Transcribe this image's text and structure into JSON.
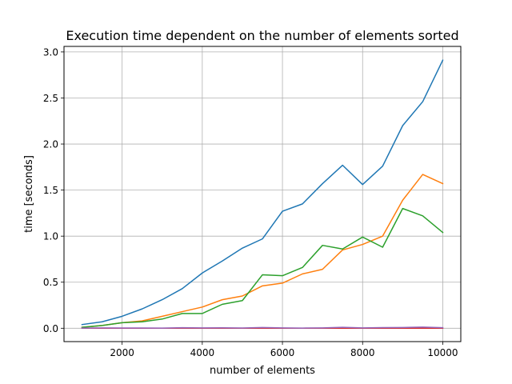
{
  "chart_data": {
    "type": "line",
    "title": "Execution time dependent on the number of elements sorted",
    "xlabel": "number of elements",
    "ylabel": "time [seconds]",
    "xlim": [
      550,
      10450
    ],
    "ylim": [
      -0.145,
      3.06
    ],
    "xticks": [
      2000,
      4000,
      6000,
      8000,
      10000
    ],
    "xtick_labels": [
      "2000",
      "4000",
      "6000",
      "8000",
      "10000"
    ],
    "yticks": [
      0.0,
      0.5,
      1.0,
      1.5,
      2.0,
      2.5,
      3.0
    ],
    "ytick_labels": [
      "0.0",
      "0.5",
      "1.0",
      "1.5",
      "2.0",
      "2.5",
      "3.0"
    ],
    "grid": true,
    "x": [
      1000,
      1500,
      2000,
      2500,
      3000,
      3500,
      4000,
      4500,
      5000,
      5500,
      6000,
      6500,
      7000,
      7500,
      8000,
      8500,
      9000,
      9500,
      10000
    ],
    "series": [
      {
        "color": "#1f77b4",
        "values": [
          0.04,
          0.07,
          0.13,
          0.21,
          0.31,
          0.43,
          0.6,
          0.73,
          0.87,
          0.97,
          1.27,
          1.35,
          1.57,
          1.77,
          1.56,
          1.76,
          2.2,
          2.46,
          2.91
        ]
      },
      {
        "color": "#ff7f0e",
        "values": [
          0.01,
          0.03,
          0.06,
          0.08,
          0.13,
          0.18,
          0.23,
          0.31,
          0.35,
          0.46,
          0.49,
          0.59,
          0.64,
          0.85,
          0.91,
          1.0,
          1.39,
          1.67,
          1.57
        ]
      },
      {
        "color": "#2ca02c",
        "values": [
          0.01,
          0.03,
          0.06,
          0.07,
          0.1,
          0.16,
          0.16,
          0.26,
          0.3,
          0.58,
          0.57,
          0.66,
          0.9,
          0.86,
          0.99,
          0.88,
          1.3,
          1.22,
          1.04
        ]
      },
      {
        "color": "#d62728",
        "values": [
          0.0,
          0.0,
          0.0,
          0.0,
          0.0,
          0.0,
          0.0,
          0.0,
          0.0,
          0.0,
          0.0,
          0.0,
          0.0,
          0.0,
          0.0,
          0.0,
          0.0,
          0.0,
          0.0
        ]
      },
      {
        "color": "#9467bd",
        "values": [
          0.002,
          0.004,
          0.003,
          0.003,
          0.002,
          0.006,
          0.004,
          0.005,
          0.003,
          0.008,
          0.004,
          0.002,
          0.004,
          0.01,
          0.004,
          0.007,
          0.008,
          0.012,
          0.006
        ]
      }
    ]
  }
}
